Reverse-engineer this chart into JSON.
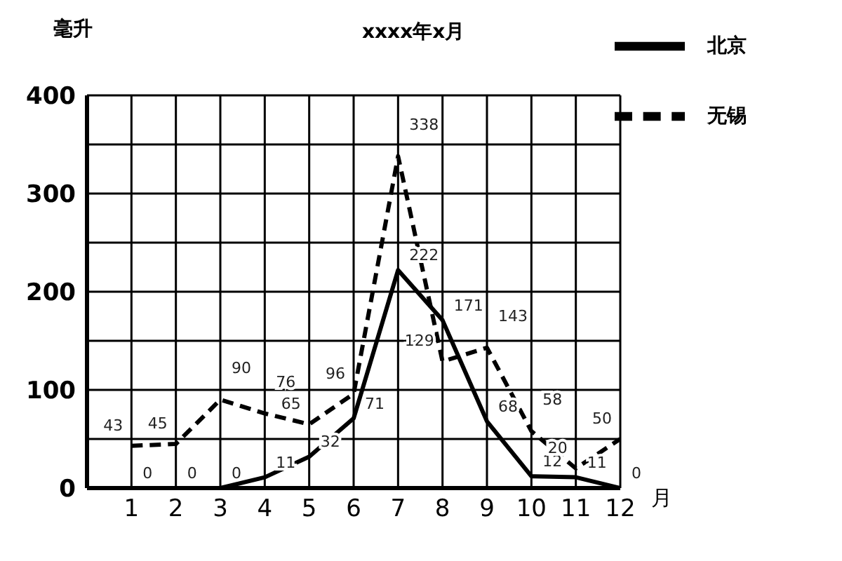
{
  "chart_data": {
    "type": "line",
    "title": "xxxx年x月",
    "xlabel": "月",
    "ylabel": "毫升",
    "x": [
      1,
      2,
      3,
      4,
      5,
      6,
      7,
      8,
      9,
      10,
      11,
      12
    ],
    "series": [
      {
        "name": "北京",
        "color": "#000000",
        "line_style": "solid",
        "values": [
          0,
          0,
          0,
          11,
          32,
          71,
          222,
          171,
          68,
          12,
          11,
          0
        ]
      },
      {
        "name": "无锡",
        "color": "#000000",
        "line_style": "dashed",
        "values": [
          43,
          45,
          90,
          76,
          65,
          96,
          338,
          129,
          143,
          58,
          20,
          50
        ]
      }
    ],
    "xlim": [
      0,
      12
    ],
    "xticks": [
      1,
      2,
      3,
      4,
      5,
      6,
      7,
      8,
      9,
      10,
      11,
      12
    ],
    "ylim": [
      0,
      400
    ],
    "yticks": [
      0,
      {
        "value": 50,
        "label": null
      },
      100,
      {
        "value": 150,
        "label": null
      },
      200,
      {
        "value": 250,
        "label": null
      },
      300,
      {
        "value": 350,
        "label": null
      },
      400
    ],
    "grid": true,
    "legend": "top right",
    "marker": "none",
    "data_labels": true
  }
}
